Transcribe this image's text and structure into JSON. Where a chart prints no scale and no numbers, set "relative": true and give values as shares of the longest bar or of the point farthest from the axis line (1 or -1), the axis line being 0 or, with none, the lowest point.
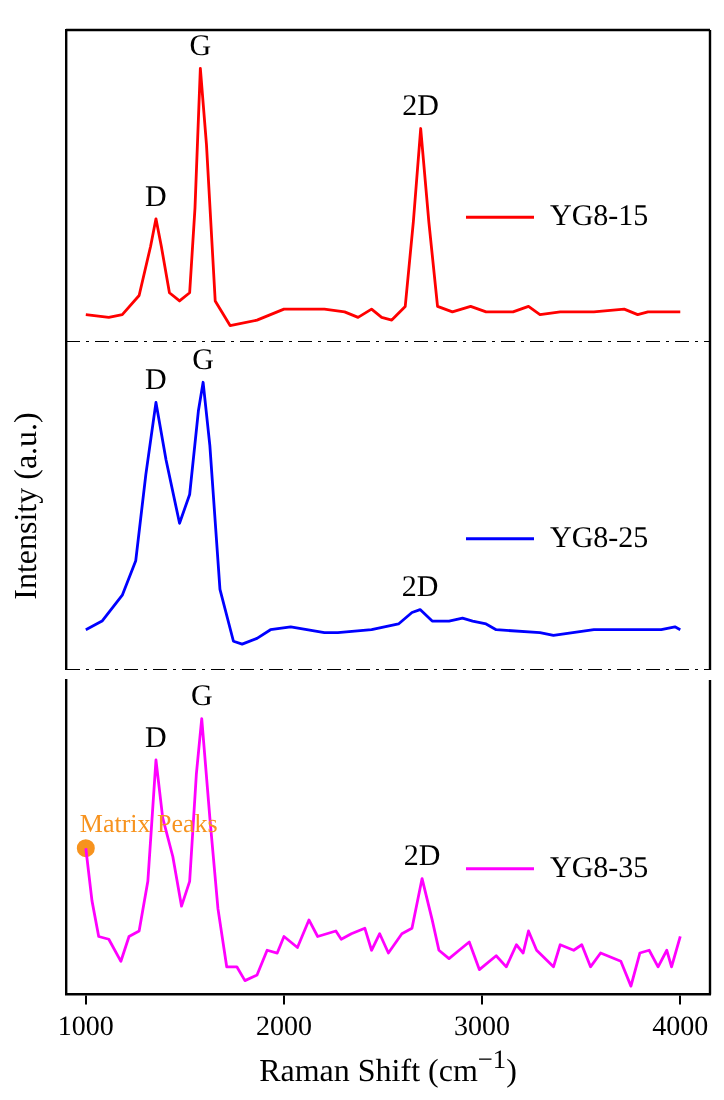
{
  "chart_data": [
    {
      "type": "line",
      "relative": true,
      "xlim": [
        900,
        4150
      ],
      "xticks": [
        1000,
        2000,
        3000,
        4000
      ],
      "tick_labels": false,
      "legend": "right",
      "annotations": [
        {
          "text": "D",
          "x": 1354,
          "y": 0.45
        },
        {
          "text": "G",
          "x": 1578,
          "y": 1
        },
        {
          "text": "2D",
          "x": 2690,
          "y": 0.78
        }
      ],
      "series": [
        {
          "name": "YG8-15",
          "color": "#ff0000",
          "x": [
            1000,
            1116,
            1184,
            1269,
            1327,
            1354,
            1381,
            1422,
            1473,
            1524,
            1551,
            1578,
            1609,
            1653,
            1728,
            1864,
            2000,
            2204,
            2306,
            2374,
            2442,
            2493,
            2544,
            2612,
            2653,
            2690,
            2731,
            2775,
            2850,
            2942,
            3020,
            3156,
            3234,
            3292,
            3394,
            3564,
            3717,
            3785,
            3837,
            4000
          ],
          "values": [
            0.1,
            0.09,
            0.1,
            0.17,
            0.35,
            0.45,
            0.35,
            0.18,
            0.15,
            0.18,
            0.49,
            1,
            0.72,
            0.15,
            0.06,
            0.08,
            0.12,
            0.12,
            0.11,
            0.09,
            0.12,
            0.09,
            0.08,
            0.13,
            0.44,
            0.78,
            0.44,
            0.13,
            0.11,
            0.13,
            0.11,
            0.11,
            0.13,
            0.1,
            0.11,
            0.11,
            0.12,
            0.1,
            0.11,
            0.11
          ]
        }
      ]
    },
    {
      "type": "line",
      "relative": true,
      "xlim": [
        900,
        4150
      ],
      "xticks": [
        1000,
        2000,
        3000,
        4000
      ],
      "tick_labels": false,
      "legend": "right",
      "ylabel": "Intensity (a.u.)",
      "annotations": [
        {
          "text": "D",
          "x": 1354,
          "y": 0.93
        },
        {
          "text": "G",
          "x": 1592,
          "y": 1
        },
        {
          "text": "2D",
          "x": 2687,
          "y": 0.21
        }
      ],
      "series": [
        {
          "name": "YG8-25",
          "color": "#0000ff",
          "x": [
            1000,
            1082,
            1184,
            1252,
            1303,
            1354,
            1405,
            1473,
            1524,
            1568,
            1592,
            1626,
            1677,
            1745,
            1789,
            1864,
            1932,
            2034,
            2204,
            2272,
            2442,
            2578,
            2646,
            2687,
            2748,
            2833,
            2901,
            2952,
            3020,
            3071,
            3292,
            3360,
            3564,
            3802,
            3904,
            3973,
            4000
          ],
          "values": [
            0.14,
            0.17,
            0.26,
            0.38,
            0.68,
            0.93,
            0.73,
            0.51,
            0.61,
            0.9,
            1,
            0.78,
            0.28,
            0.1,
            0.09,
            0.11,
            0.14,
            0.15,
            0.13,
            0.13,
            0.14,
            0.16,
            0.2,
            0.21,
            0.17,
            0.17,
            0.18,
            0.17,
            0.16,
            0.14,
            0.13,
            0.12,
            0.14,
            0.14,
            0.14,
            0.15,
            0.14
          ]
        }
      ]
    },
    {
      "type": "line",
      "relative": true,
      "xlim": [
        900,
        4150
      ],
      "xticks": [
        1000,
        2000,
        3000,
        4000
      ],
      "tick_labels": "x",
      "legend": "right",
      "xlabel": "Raman Shift (cm$^{−1}$)",
      "annotations": [
        {
          "text": "D",
          "x": 1354,
          "y": 0.85
        },
        {
          "text": "G",
          "x": 1585,
          "y": 1
        },
        {
          "text": "2D",
          "x": 2697,
          "y": 0.42
        }
      ],
      "series": [
        {
          "name": "YG8-35",
          "color": "#ff00ff",
          "x": [
            1000,
            1031,
            1065,
            1116,
            1177,
            1218,
            1269,
            1313,
            1354,
            1388,
            1439,
            1483,
            1524,
            1558,
            1585,
            1626,
            1667,
            1711,
            1762,
            1803,
            1864,
            1915,
            1966,
            2000,
            2068,
            2126,
            2170,
            2262,
            2289,
            2340,
            2408,
            2442,
            2483,
            2527,
            2595,
            2646,
            2697,
            2748,
            2782,
            2833,
            2884,
            2935,
            2986,
            3071,
            3122,
            3173,
            3207,
            3234,
            3275,
            3360,
            3394,
            3462,
            3503,
            3547,
            3598,
            3700,
            3751,
            3796,
            3843,
            3888,
            3932,
            3956,
            4000
          ],
          "values": [
            0.53,
            0.34,
            0.21,
            0.2,
            0.12,
            0.21,
            0.23,
            0.41,
            0.85,
            0.64,
            0.5,
            0.32,
            0.41,
            0.8,
            1,
            0.64,
            0.31,
            0.1,
            0.1,
            0.05,
            0.07,
            0.16,
            0.15,
            0.21,
            0.17,
            0.27,
            0.21,
            0.23,
            0.2,
            0.22,
            0.24,
            0.16,
            0.22,
            0.15,
            0.22,
            0.24,
            0.42,
            0.27,
            0.16,
            0.13,
            0.16,
            0.19,
            0.09,
            0.14,
            0.1,
            0.18,
            0.15,
            0.23,
            0.16,
            0.1,
            0.18,
            0.16,
            0.18,
            0.1,
            0.15,
            0.12,
            0.03,
            0.15,
            0.16,
            0.1,
            0.16,
            0.1,
            0.21
          ]
        },
        {
          "name": "Matrix Peaks",
          "type": "scatter",
          "color": "#f7931e",
          "x": [
            1000
          ],
          "values": [
            0.53
          ]
        }
      ]
    }
  ]
}
